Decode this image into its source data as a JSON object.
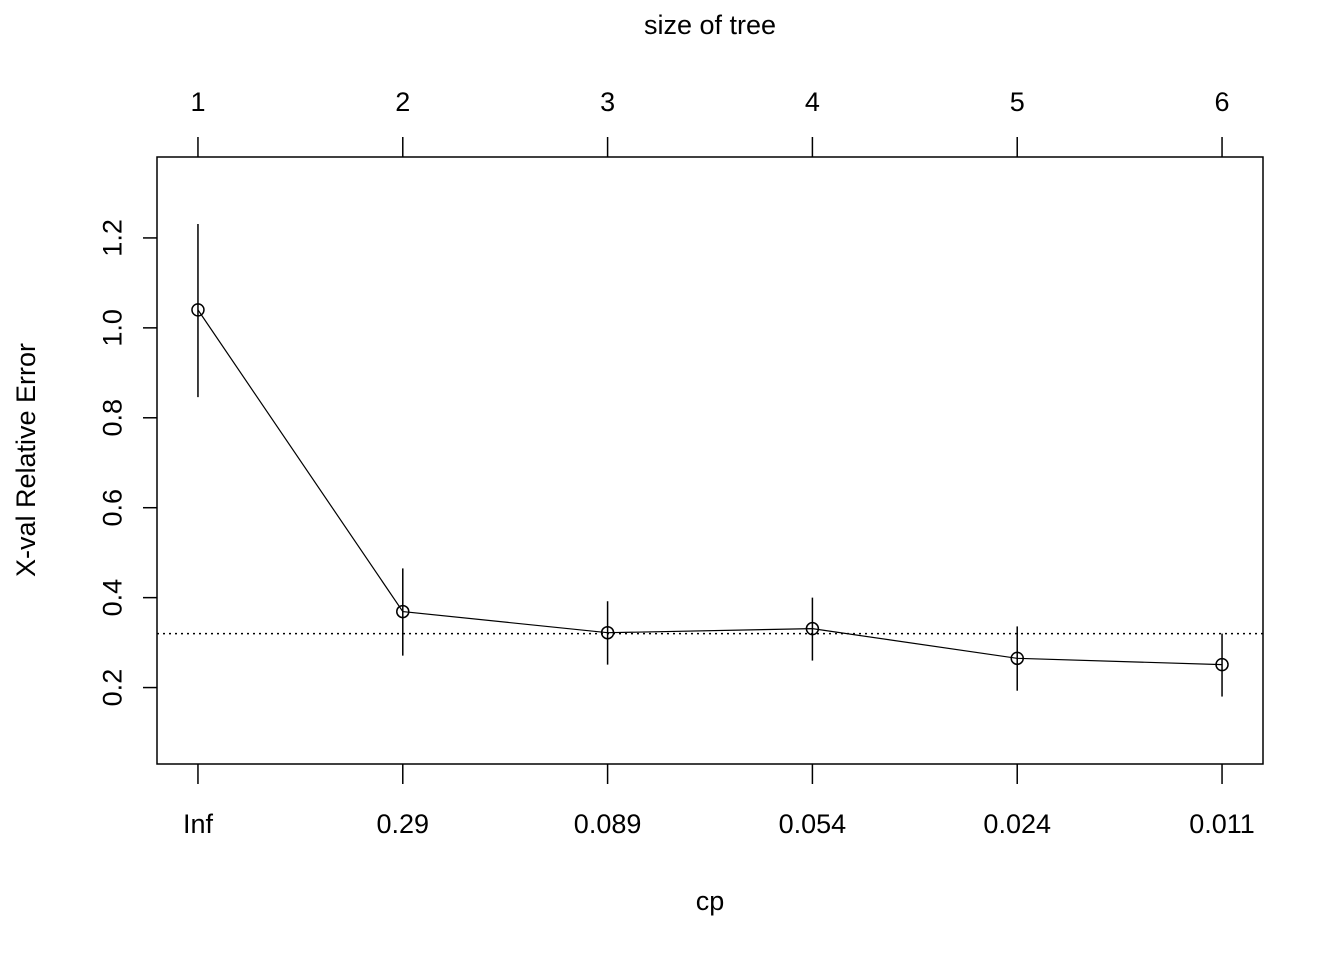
{
  "chart_data": {
    "type": "line",
    "title": "",
    "xlabel": "cp",
    "ylabel": "X-val Relative Error",
    "top_axis_label": "size of tree",
    "x": [
      1,
      2,
      3,
      4,
      5,
      6
    ],
    "bottom_tick_labels": [
      "Inf",
      "0.29",
      "0.089",
      "0.054",
      "0.024",
      "0.011"
    ],
    "top_tick_labels": [
      "1",
      "2",
      "3",
      "4",
      "5",
      "6"
    ],
    "y_ticks": [
      0.2,
      0.4,
      0.6,
      0.8,
      1.0,
      1.2
    ],
    "y_tick_labels": [
      "0.2",
      "0.4",
      "0.6",
      "0.8",
      "1.0",
      "1.2"
    ],
    "ylim": [
      0.03,
      1.38
    ],
    "xlim": [
      0.8,
      6.2
    ],
    "series": [
      {
        "values": [
          1.04,
          0.369,
          0.322,
          0.331,
          0.265,
          0.251
        ],
        "upper": [
          1.231,
          0.465,
          0.392,
          0.4,
          0.336,
          0.32
        ],
        "lower": [
          0.846,
          0.271,
          0.251,
          0.26,
          0.193,
          0.18
        ]
      }
    ],
    "reference_line": {
      "y": 0.32,
      "style": "dotted"
    },
    "grid": false,
    "color": "#000000"
  }
}
